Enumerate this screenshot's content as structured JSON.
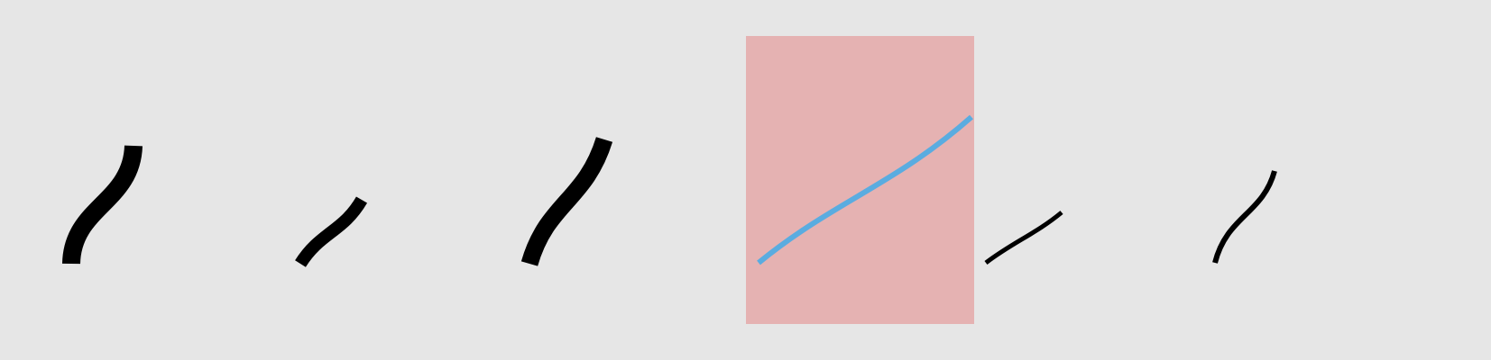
{
  "background_color": "#e6e6e6",
  "highlight_panel_color": "#e5b2b2",
  "selected_stroke_color": "#5aace0",
  "stroke_color": "#000000",
  "strokes": [
    {
      "id": "stroke-1",
      "selected": false
    },
    {
      "id": "stroke-2",
      "selected": false
    },
    {
      "id": "stroke-3",
      "selected": false
    },
    {
      "id": "stroke-4",
      "selected": true
    },
    {
      "id": "stroke-5",
      "selected": false
    },
    {
      "id": "stroke-6",
      "selected": false
    }
  ]
}
